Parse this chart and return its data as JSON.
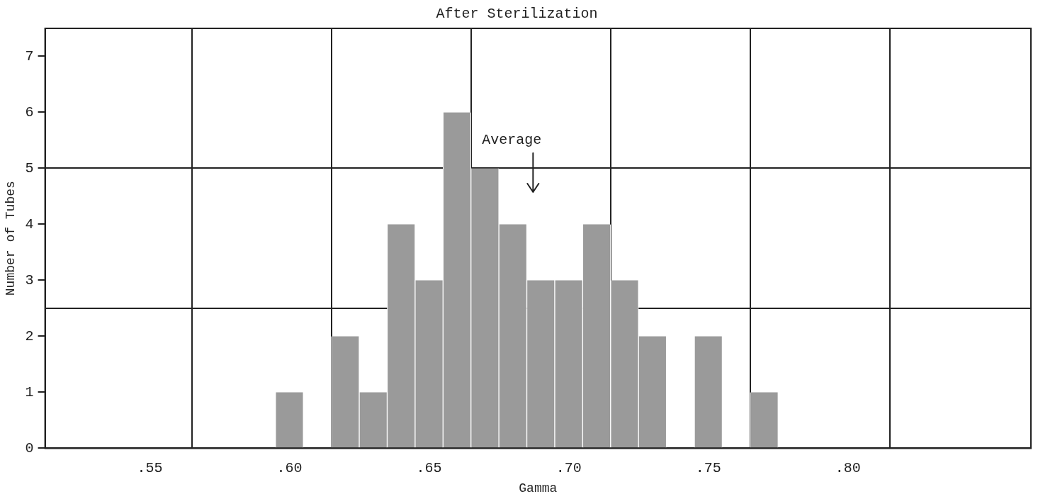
{
  "chart_data": {
    "type": "histogram",
    "title": "After Sterilization",
    "xlabel": "Gamma",
    "ylabel": "Number of Tubes",
    "bins": [
      0.595,
      0.605,
      0.615,
      0.625,
      0.635,
      0.645,
      0.655,
      0.665,
      0.675,
      0.685,
      0.695,
      0.705,
      0.715,
      0.725,
      0.735,
      0.745,
      0.755,
      0.765,
      0.775
    ],
    "values": [
      1,
      0,
      2,
      1,
      4,
      3,
      6,
      5,
      4,
      3,
      3,
      4,
      3,
      2,
      0,
      2,
      0,
      1
    ],
    "color": "#9a9a9a",
    "xlim": [
      0.5125,
      0.8655
    ],
    "xticks": [
      {
        "value": 0.55,
        "label": ".55"
      },
      {
        "value": 0.565,
        "label": null
      },
      {
        "value": 0.6,
        "label": ".60"
      },
      {
        "value": 0.615,
        "label": null
      },
      {
        "value": 0.65,
        "label": ".65"
      },
      {
        "value": 0.665,
        "label": null
      },
      {
        "value": 0.7,
        "label": ".70"
      },
      {
        "value": 0.715,
        "label": null
      },
      {
        "value": 0.75,
        "label": ".75"
      },
      {
        "value": 0.765,
        "label": null
      },
      {
        "value": 0.8,
        "label": ".80"
      },
      {
        "value": 0.815,
        "label": null
      }
    ],
    "ylim": [
      0,
      7.5
    ],
    "yticks": [
      0,
      1,
      2,
      {
        "value": 2.5,
        "label": null
      },
      3,
      4,
      5,
      {
        "value": 5,
        "label": null
      },
      6,
      7
    ],
    "grid": true,
    "annotations": [
      "Average"
    ]
  }
}
